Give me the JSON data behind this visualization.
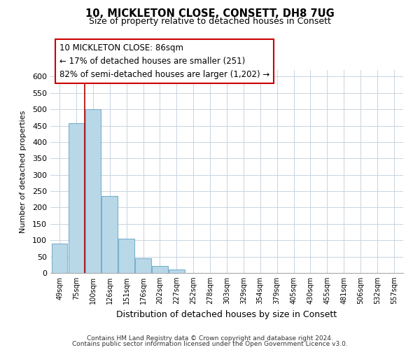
{
  "title": "10, MICKLETON CLOSE, CONSETT, DH8 7UG",
  "subtitle": "Size of property relative to detached houses in Consett",
  "xlabel": "Distribution of detached houses by size in Consett",
  "ylabel": "Number of detached properties",
  "bin_labels": [
    "49sqm",
    "75sqm",
    "100sqm",
    "126sqm",
    "151sqm",
    "176sqm",
    "202sqm",
    "227sqm",
    "252sqm",
    "278sqm",
    "303sqm",
    "329sqm",
    "354sqm",
    "379sqm",
    "405sqm",
    "430sqm",
    "455sqm",
    "481sqm",
    "506sqm",
    "532sqm",
    "557sqm"
  ],
  "bar_values": [
    90,
    458,
    500,
    236,
    105,
    44,
    21,
    10,
    0,
    0,
    1,
    0,
    0,
    0,
    1,
    0,
    0,
    0,
    1,
    0,
    1
  ],
  "bar_color": "#b8d8e8",
  "bar_edge_color": "#7ab0cc",
  "vline_color": "#aa0000",
  "vline_x_index": 1.5,
  "ylim": [
    0,
    620
  ],
  "yticks": [
    0,
    50,
    100,
    150,
    200,
    250,
    300,
    350,
    400,
    450,
    500,
    550,
    600
  ],
  "annotation_line1": "10 MICKLETON CLOSE: 86sqm",
  "annotation_line2": "← 17% of detached houses are smaller (251)",
  "annotation_line3": "82% of semi-detached houses are larger (1,202) →",
  "annotation_box_color": "#ffffff",
  "annotation_box_edge": "#cc0000",
  "footer_line1": "Contains HM Land Registry data © Crown copyright and database right 2024.",
  "footer_line2": "Contains public sector information licensed under the Open Government Licence v3.0.",
  "background_color": "#ffffff",
  "grid_color": "#c8d4e0"
}
